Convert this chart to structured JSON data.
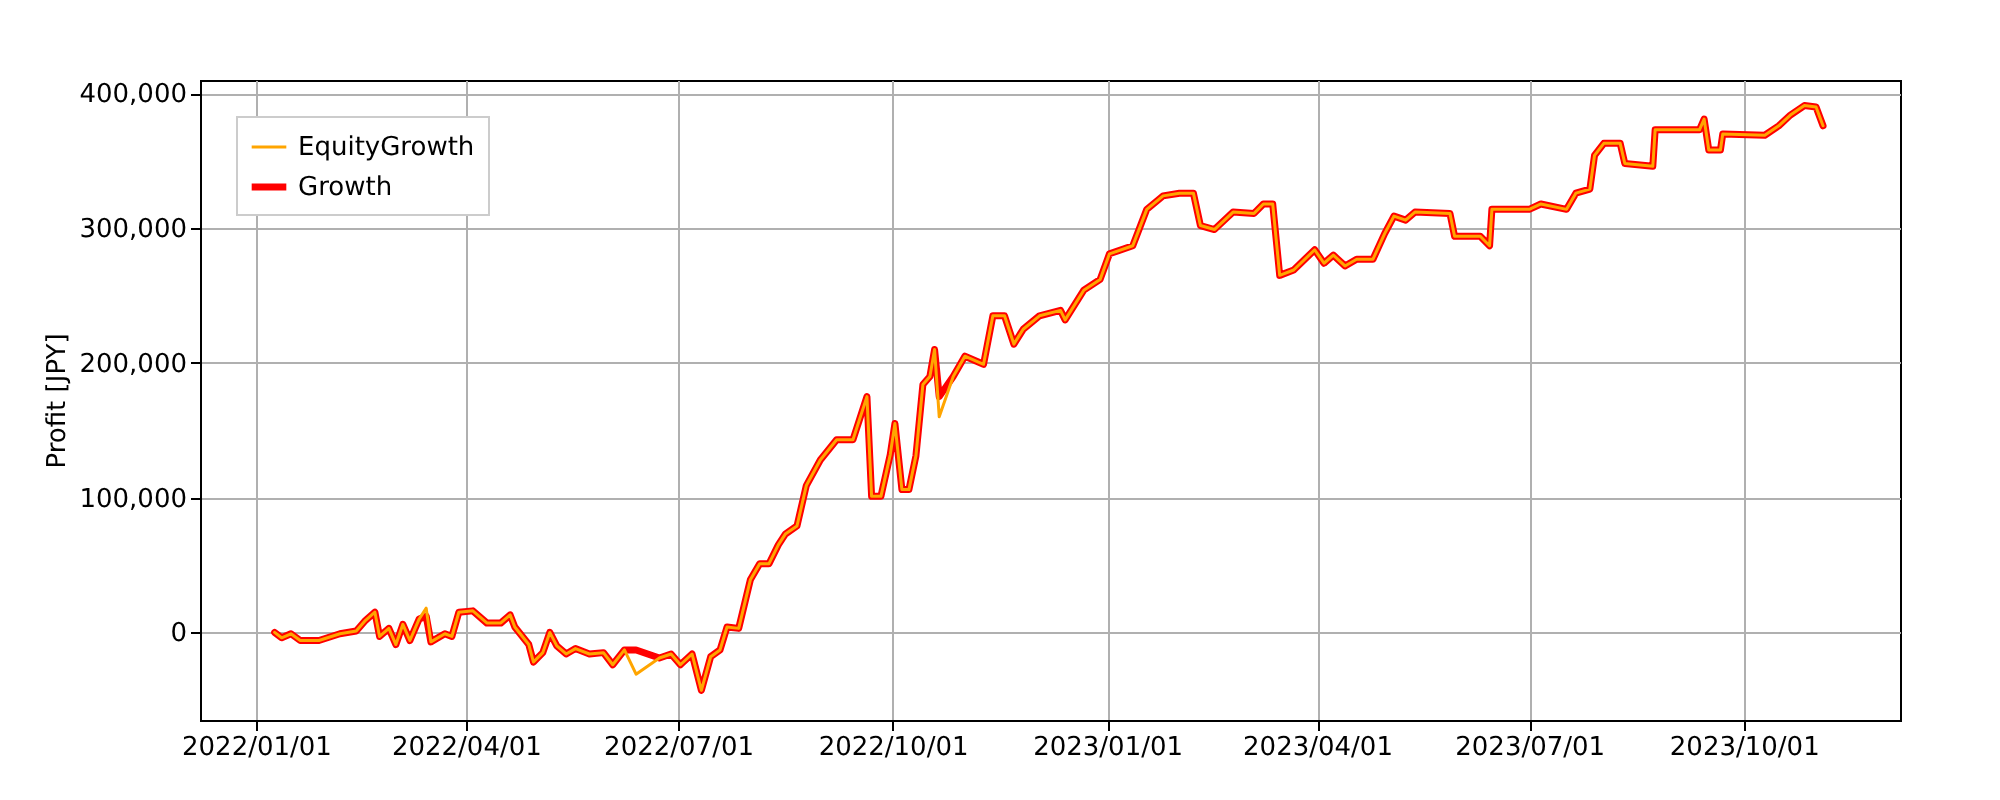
{
  "chart_data": {
    "type": "line",
    "ylabel": "Profit [JPY]",
    "legend": "top left",
    "grid": true,
    "xlim": [
      "2021-12-08",
      "2023-12-07"
    ],
    "xticks": [
      {
        "value": "2022-01-01",
        "label": "2022/01/01"
      },
      {
        "value": "2022-04-01",
        "label": "2022/04/01"
      },
      {
        "value": "2022-07-01",
        "label": "2022/07/01"
      },
      {
        "value": "2022-10-01",
        "label": "2022/10/01"
      },
      {
        "value": "2023-01-01",
        "label": "2023/01/01"
      },
      {
        "value": "2023-04-01",
        "label": "2023/04/01"
      },
      {
        "value": "2023-07-01",
        "label": "2023/07/01"
      },
      {
        "value": "2023-10-01",
        "label": "2023/10/01"
      }
    ],
    "ylim": [
      -65000,
      410000
    ],
    "yticks": [
      {
        "value": 0,
        "label": "0"
      },
      {
        "value": 100000,
        "label": "100,000"
      },
      {
        "value": 200000,
        "label": "200,000"
      },
      {
        "value": 300000,
        "label": "300,000"
      },
      {
        "value": 400000,
        "label": "400,000"
      }
    ],
    "x": [
      "2022-01-09",
      "2022-01-12",
      "2022-01-16",
      "2022-01-20",
      "2022-01-28",
      "2022-02-06",
      "2022-02-13",
      "2022-02-17",
      "2022-02-21",
      "2022-02-23",
      "2022-02-27",
      "2022-03-02",
      "2022-03-05",
      "2022-03-08",
      "2022-03-12",
      "2022-03-15",
      "2022-03-17",
      "2022-03-23",
      "2022-03-26",
      "2022-03-29",
      "2022-04-04",
      "2022-04-10",
      "2022-04-16",
      "2022-04-20",
      "2022-04-22",
      "2022-04-28",
      "2022-04-30",
      "2022-05-04",
      "2022-05-07",
      "2022-05-10",
      "2022-05-14",
      "2022-05-18",
      "2022-05-24",
      "2022-05-30",
      "2022-06-03",
      "2022-06-08",
      "2022-06-13",
      "2022-06-23",
      "2022-06-28",
      "2022-07-02",
      "2022-07-07",
      "2022-07-11",
      "2022-07-15",
      "2022-07-19",
      "2022-07-22",
      "2022-07-27",
      "2022-08-01",
      "2022-08-05",
      "2022-08-09",
      "2022-08-13",
      "2022-08-16",
      "2022-08-21",
      "2022-08-25",
      "2022-08-31",
      "2022-09-07",
      "2022-09-14",
      "2022-09-20",
      "2022-09-22",
      "2022-09-26",
      "2022-09-30",
      "2022-10-02",
      "2022-10-05",
      "2022-10-08",
      "2022-10-11",
      "2022-10-14",
      "2022-10-17",
      "2022-10-19",
      "2022-10-21",
      "2022-10-27",
      "2022-11-01",
      "2022-11-09",
      "2022-11-13",
      "2022-11-18",
      "2022-11-22",
      "2022-11-26",
      "2022-12-03",
      "2022-12-12",
      "2022-12-14",
      "2022-12-22",
      "2022-12-29",
      "2023-01-02",
      "2023-01-12",
      "2023-01-18",
      "2023-01-25",
      "2023-02-01",
      "2023-02-07",
      "2023-02-10",
      "2023-02-16",
      "2023-02-24",
      "2023-03-05",
      "2023-03-09",
      "2023-03-13",
      "2023-03-16",
      "2023-03-22",
      "2023-03-31",
      "2023-04-04",
      "2023-04-08",
      "2023-04-13",
      "2023-04-18",
      "2023-04-25",
      "2023-04-30",
      "2023-05-04",
      "2023-05-09",
      "2023-05-13",
      "2023-05-28",
      "2023-05-30",
      "2023-06-10",
      "2023-06-14",
      "2023-06-15",
      "2023-07-01",
      "2023-07-06",
      "2023-07-17",
      "2023-07-21",
      "2023-07-27",
      "2023-07-29",
      "2023-08-02",
      "2023-08-09",
      "2023-08-11",
      "2023-08-23",
      "2023-08-24",
      "2023-09-12",
      "2023-09-14",
      "2023-09-16",
      "2023-09-21",
      "2023-09-22",
      "2023-10-10",
      "2023-10-16",
      "2023-10-21",
      "2023-10-27",
      "2023-11-01",
      "2023-11-04"
    ],
    "series": [
      {
        "name": "EquityGrowth",
        "color": "#ffa500",
        "values": [
          0,
          -4000,
          -1000,
          -6000,
          -6000,
          -1000,
          1000,
          9000,
          15000,
          -3000,
          3000,
          -9000,
          6000,
          -6000,
          10000,
          18000,
          -7000,
          -1000,
          -3000,
          15000,
          16000,
          7000,
          7000,
          13000,
          4000,
          -9000,
          -22000,
          -15000,
          0,
          -10000,
          -16000,
          -12000,
          -16000,
          -15000,
          -24000,
          -13000,
          -31000,
          -19000,
          -16000,
          -24000,
          -16000,
          -43000,
          -18000,
          -13000,
          4000,
          3000,
          39000,
          51000,
          51000,
          65000,
          73000,
          79000,
          109000,
          128000,
          143000,
          143000,
          175000,
          101000,
          101000,
          132000,
          155000,
          106000,
          106000,
          131000,
          184000,
          190000,
          210000,
          160000,
          190000,
          205000,
          199000,
          235000,
          235000,
          214000,
          225000,
          235000,
          239000,
          232000,
          254000,
          262000,
          281000,
          287000,
          314000,
          324000,
          326000,
          326000,
          302000,
          299000,
          312000,
          311000,
          318000,
          318000,
          265000,
          269000,
          284000,
          274000,
          280000,
          272000,
          277000,
          277000,
          296000,
          309000,
          306000,
          312000,
          311000,
          294000,
          294000,
          287000,
          314000,
          314000,
          318000,
          314000,
          326000,
          329000,
          354000,
          363000,
          363000,
          348000,
          346000,
          373000,
          373000,
          381000,
          358000,
          358000,
          370000,
          369000,
          376000,
          384000,
          391000,
          390000,
          376000
        ]
      },
      {
        "name": "Growth",
        "color": "#ff0000",
        "values": [
          0,
          -4000,
          -1000,
          -6000,
          -6000,
          -1000,
          1000,
          9000,
          15000,
          -3000,
          3000,
          -9000,
          6000,
          -6000,
          10000,
          12000,
          -7000,
          -1000,
          -3000,
          15000,
          16000,
          7000,
          7000,
          13000,
          4000,
          -9000,
          -22000,
          -15000,
          0,
          -10000,
          -16000,
          -12000,
          -16000,
          -15000,
          -24000,
          -13000,
          -13000,
          -19000,
          -16000,
          -24000,
          -16000,
          -43000,
          -18000,
          -13000,
          4000,
          3000,
          39000,
          51000,
          51000,
          65000,
          73000,
          79000,
          109000,
          128000,
          143000,
          143000,
          175000,
          101000,
          101000,
          132000,
          155000,
          106000,
          106000,
          131000,
          184000,
          190000,
          210000,
          175000,
          190000,
          205000,
          199000,
          235000,
          235000,
          214000,
          225000,
          235000,
          239000,
          232000,
          254000,
          262000,
          281000,
          287000,
          314000,
          324000,
          326000,
          326000,
          302000,
          299000,
          312000,
          311000,
          318000,
          318000,
          265000,
          269000,
          284000,
          274000,
          280000,
          272000,
          277000,
          277000,
          296000,
          309000,
          306000,
          312000,
          311000,
          294000,
          294000,
          287000,
          314000,
          314000,
          318000,
          314000,
          326000,
          329000,
          354000,
          363000,
          363000,
          348000,
          346000,
          373000,
          373000,
          381000,
          358000,
          358000,
          370000,
          369000,
          376000,
          384000,
          391000,
          390000,
          376000
        ]
      }
    ]
  }
}
